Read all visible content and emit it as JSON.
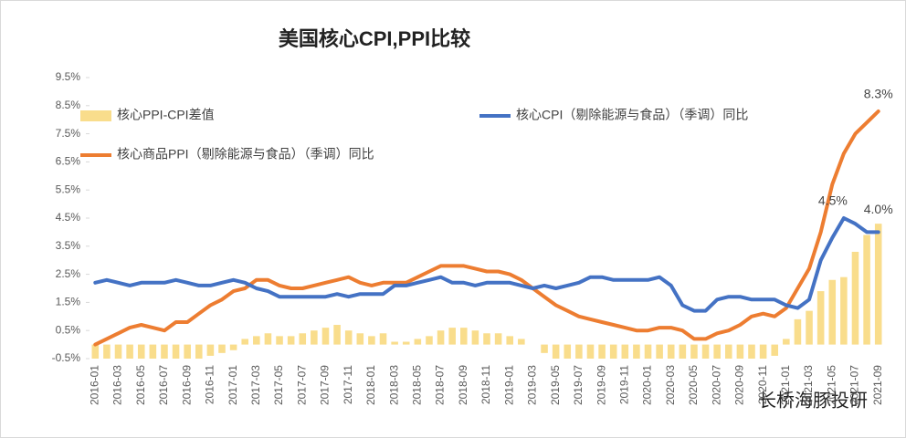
{
  "chart_data": {
    "type": "bar_line",
    "title": "美国核心CPI,PPI比较",
    "source": "长桥海豚投研",
    "categories": [
      "2016-01",
      null,
      "2016-03",
      null,
      "2016-05",
      null,
      "2016-07",
      null,
      "2016-09",
      null,
      "2016-11",
      null,
      "2017-01",
      null,
      "2017-03",
      null,
      "2017-05",
      null,
      "2017-07",
      null,
      "2017-09",
      null,
      "2017-11",
      null,
      "2018-01",
      null,
      "2018-03",
      null,
      "2018-05",
      null,
      "2018-07",
      null,
      "2018-09",
      null,
      "2018-11",
      null,
      "2019-01",
      null,
      "2019-03",
      null,
      "2019-05",
      null,
      "2019-07",
      null,
      "2019-09",
      null,
      "2019-11",
      null,
      "2020-01",
      null,
      "2020-03",
      null,
      "2020-05",
      null,
      "2020-07",
      null,
      "2020-09",
      null,
      "2020-11",
      null,
      "2021-01",
      null,
      "2021-03",
      null,
      "2021-05",
      null,
      "2021-07",
      null,
      "2021-09"
    ],
    "series": [
      {
        "name": "核心PPI-CPI差值",
        "kind": "bar",
        "color": "#f9dd8c",
        "values": [
          -0.5,
          -0.5,
          -0.5,
          -0.5,
          -0.5,
          -0.5,
          -0.5,
          -0.5,
          -0.5,
          -0.5,
          -0.4,
          -0.3,
          -0.2,
          0.2,
          0.3,
          0.4,
          0.3,
          0.3,
          0.4,
          0.5,
          0.6,
          0.7,
          0.5,
          0.4,
          0.3,
          0.4,
          0.1,
          0.1,
          0.2,
          0.3,
          0.5,
          0.6,
          0.6,
          0.5,
          0.4,
          0.4,
          0.3,
          0.2,
          0.0,
          -0.3,
          -0.5,
          -0.5,
          -0.5,
          -0.5,
          -0.5,
          -0.5,
          -0.5,
          -0.5,
          -0.5,
          -0.5,
          -0.5,
          -0.5,
          -0.5,
          -0.5,
          -0.5,
          -0.5,
          -0.5,
          -0.5,
          -0.5,
          -0.4,
          0.2,
          0.9,
          1.2,
          1.9,
          2.3,
          2.4,
          3.3,
          3.9,
          4.3
        ]
      },
      {
        "name": "核心商品PPI（剔除能源与食品）（季调）同比",
        "kind": "line",
        "color": "#ed7d31",
        "values": [
          0.0,
          0.2,
          0.4,
          0.6,
          0.7,
          0.6,
          0.5,
          0.8,
          0.8,
          1.1,
          1.4,
          1.6,
          1.9,
          2.0,
          2.3,
          2.3,
          2.1,
          2.0,
          2.0,
          2.1,
          2.2,
          2.3,
          2.4,
          2.2,
          2.1,
          2.2,
          2.2,
          2.2,
          2.4,
          2.6,
          2.8,
          2.8,
          2.8,
          2.7,
          2.6,
          2.6,
          2.5,
          2.3,
          2.0,
          1.7,
          1.4,
          1.2,
          1.0,
          0.9,
          0.8,
          0.7,
          0.6,
          0.5,
          0.5,
          0.6,
          0.6,
          0.5,
          0.2,
          0.2,
          0.4,
          0.5,
          0.7,
          1.0,
          1.1,
          1.0,
          1.3,
          2.0,
          2.7,
          4.0,
          5.7,
          6.8,
          7.5,
          7.9,
          8.3
        ],
        "value_labels": [
          null,
          null,
          null,
          null,
          null,
          null,
          null,
          null,
          null,
          null,
          null,
          null,
          null,
          null,
          null,
          null,
          null,
          null,
          null,
          null,
          null,
          null,
          null,
          null,
          null,
          null,
          null,
          null,
          null,
          null,
          null,
          null,
          null,
          null,
          null,
          null,
          null,
          null,
          null,
          null,
          null,
          null,
          null,
          null,
          null,
          null,
          null,
          null,
          null,
          null,
          null,
          null,
          null,
          null,
          null,
          null,
          null,
          null,
          null,
          null,
          null,
          null,
          null,
          null,
          null,
          null,
          null,
          null,
          "8.3%"
        ]
      },
      {
        "name": "核心CPI（剔除能源与食品）（季调）同比",
        "kind": "line",
        "color": "#4472c4",
        "values": [
          2.2,
          2.3,
          2.2,
          2.1,
          2.2,
          2.2,
          2.2,
          2.3,
          2.2,
          2.1,
          2.1,
          2.2,
          2.3,
          2.2,
          2.0,
          1.9,
          1.7,
          1.7,
          1.7,
          1.7,
          1.7,
          1.8,
          1.7,
          1.8,
          1.8,
          1.8,
          2.1,
          2.1,
          2.2,
          2.3,
          2.4,
          2.2,
          2.2,
          2.1,
          2.2,
          2.2,
          2.2,
          2.1,
          2.0,
          2.1,
          2.0,
          2.1,
          2.2,
          2.4,
          2.4,
          2.3,
          2.3,
          2.3,
          2.3,
          2.4,
          2.1,
          1.4,
          1.2,
          1.2,
          1.6,
          1.7,
          1.7,
          1.6,
          1.6,
          1.6,
          1.4,
          1.3,
          1.6,
          3.0,
          3.8,
          4.5,
          4.3,
          4.0,
          4.0
        ],
        "value_labels": [
          null,
          null,
          null,
          null,
          null,
          null,
          null,
          null,
          null,
          null,
          null,
          null,
          null,
          null,
          null,
          null,
          null,
          null,
          null,
          null,
          null,
          null,
          null,
          null,
          null,
          null,
          null,
          null,
          null,
          null,
          null,
          null,
          null,
          null,
          null,
          null,
          null,
          null,
          null,
          null,
          null,
          null,
          null,
          null,
          null,
          null,
          null,
          null,
          null,
          null,
          null,
          null,
          null,
          null,
          null,
          null,
          null,
          null,
          null,
          null,
          null,
          null,
          null,
          null,
          null,
          "4.5%",
          null,
          null,
          "4.0%"
        ]
      }
    ],
    "ylim": [
      -0.5,
      9.5
    ],
    "yticks": [
      {
        "value": -0.5,
        "label": "-0.5%"
      },
      {
        "value": 0.5,
        "label": "0.5%"
      },
      {
        "value": 1.5,
        "label": "1.5%"
      },
      {
        "value": 2.5,
        "label": "2.5%"
      },
      {
        "value": 3.5,
        "label": "3.5%"
      },
      {
        "value": 4.5,
        "label": "4.5%"
      },
      {
        "value": 5.5,
        "label": "5.5%"
      },
      {
        "value": 6.5,
        "label": "6.5%"
      },
      {
        "value": 7.5,
        "label": "7.5%"
      },
      {
        "value": 8.5,
        "label": "8.5%"
      },
      {
        "value": 9.5,
        "label": "9.5%"
      }
    ],
    "grid": false
  }
}
